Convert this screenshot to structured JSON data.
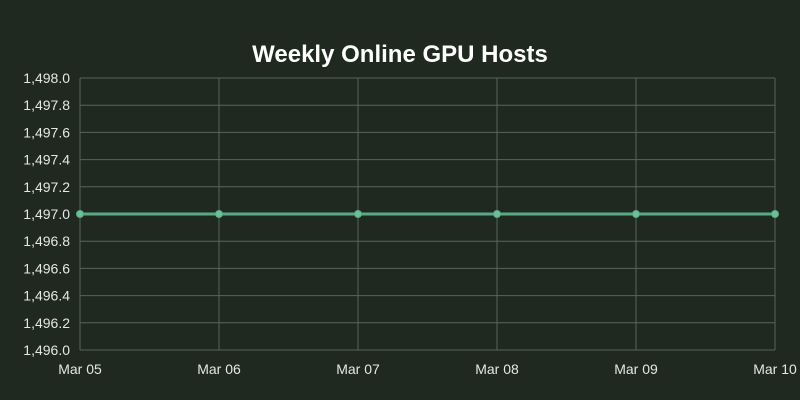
{
  "colors": {
    "background": "#1f2920",
    "text": "#ffffff",
    "tick_text": "#e6e6e6",
    "grid": "#5b645c",
    "line": "#5aa985",
    "point": "#6cc096"
  },
  "chart_data": {
    "type": "line",
    "title": "Weekly Online GPU Hosts",
    "xlabel": "",
    "ylabel": "",
    "categories": [
      "Mar 05",
      "Mar 06",
      "Mar 07",
      "Mar 08",
      "Mar 09",
      "Mar 10"
    ],
    "series": [
      {
        "values": [
          1497,
          1497,
          1497,
          1497,
          1497,
          1497
        ]
      }
    ],
    "ylim": [
      1496.0,
      1498.0
    ],
    "y_ticks": [
      "1,496.0",
      "1,496.2",
      "1,496.4",
      "1,496.6",
      "1,496.8",
      "1,497.0",
      "1,497.2",
      "1,497.4",
      "1,497.6",
      "1,497.8",
      "1,498.0"
    ],
    "grid": true,
    "legend": "none"
  }
}
